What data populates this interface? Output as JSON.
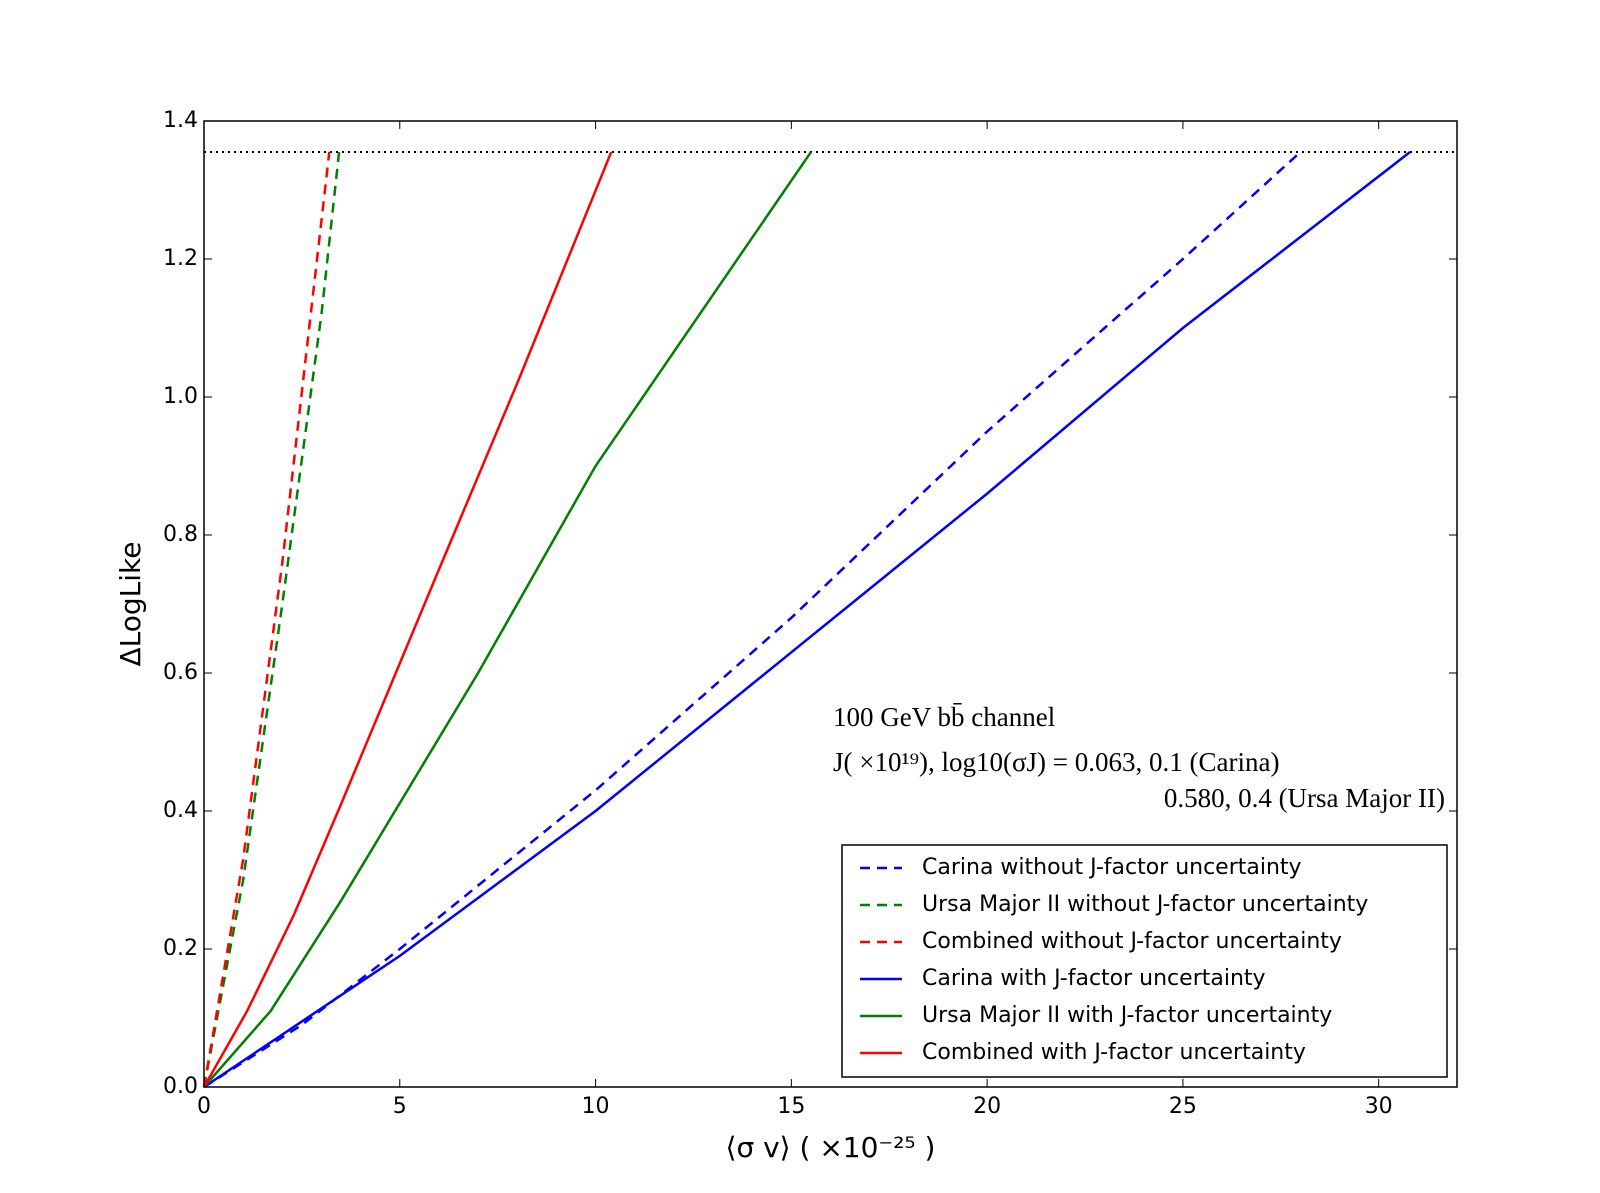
{
  "chart_data": {
    "type": "line",
    "xlabel": "⟨σ v⟩ ( ×10⁻²⁵ )",
    "ylabel": "ΔLogLike",
    "xlim": [
      0,
      32
    ],
    "xticks": [
      0,
      5,
      10,
      15,
      20,
      25,
      30
    ],
    "ylim": [
      0,
      1.4
    ],
    "yticks": [
      {
        "value": 0,
        "label": "0.0"
      },
      0.2,
      0.4,
      0.6,
      0.8,
      {
        "value": 1,
        "label": "1.0"
      },
      1.2,
      1.4
    ],
    "hline": {
      "value": 1.355,
      "color": "#000000",
      "linestyle": "dotted"
    },
    "annotations": [
      "100 GeV bb̄ channel",
      "J( ×10¹⁹), log10(σJ) = 0.063, 0.1 (Carina)",
      "0.580, 0.4 (Ursa Major II)"
    ],
    "legend": "lower right",
    "series": [
      {
        "name": "Carina without J-factor uncertainty",
        "color": "#0000ff",
        "linestyle": "dashed",
        "x": [
          0,
          2.5,
          5,
          10,
          15,
          20,
          25,
          28
        ],
        "values": [
          0,
          0.09,
          0.2,
          0.43,
          0.68,
          0.95,
          1.2,
          1.355
        ]
      },
      {
        "name": "Ursa Major II without J-factor uncertainty",
        "color": "#008000",
        "linestyle": "dashed",
        "x": [
          0,
          1,
          2,
          3,
          3.45
        ],
        "values": [
          0,
          0.3,
          0.7,
          1.12,
          1.355
        ]
      },
      {
        "name": "Combined without J-factor uncertainty",
        "color": "#ff0000",
        "linestyle": "dashed",
        "x": [
          0,
          1,
          2,
          3.2
        ],
        "values": [
          0,
          0.33,
          0.76,
          1.355
        ]
      },
      {
        "name": "Carina with J-factor uncertainty",
        "color": "#0000ff",
        "linestyle": "solid",
        "x": [
          0,
          5,
          10,
          15,
          20,
          25,
          30.8
        ],
        "values": [
          0,
          0.19,
          0.4,
          0.63,
          0.86,
          1.1,
          1.355
        ]
      },
      {
        "name": "Ursa Major II with J-factor uncertainty",
        "color": "#008000",
        "linestyle": "solid",
        "x": [
          0,
          1.7,
          3.5,
          7,
          10,
          15.5
        ],
        "values": [
          0,
          0.11,
          0.27,
          0.6,
          0.9,
          1.355
        ]
      },
      {
        "name": "Combined with J-factor uncertainty",
        "color": "#ff0000",
        "linestyle": "solid",
        "x": [
          0,
          1.1,
          2.3,
          3.5,
          6,
          8,
          10.4
        ],
        "values": [
          0,
          0.11,
          0.25,
          0.41,
          0.75,
          1.02,
          1.355
        ]
      }
    ]
  }
}
